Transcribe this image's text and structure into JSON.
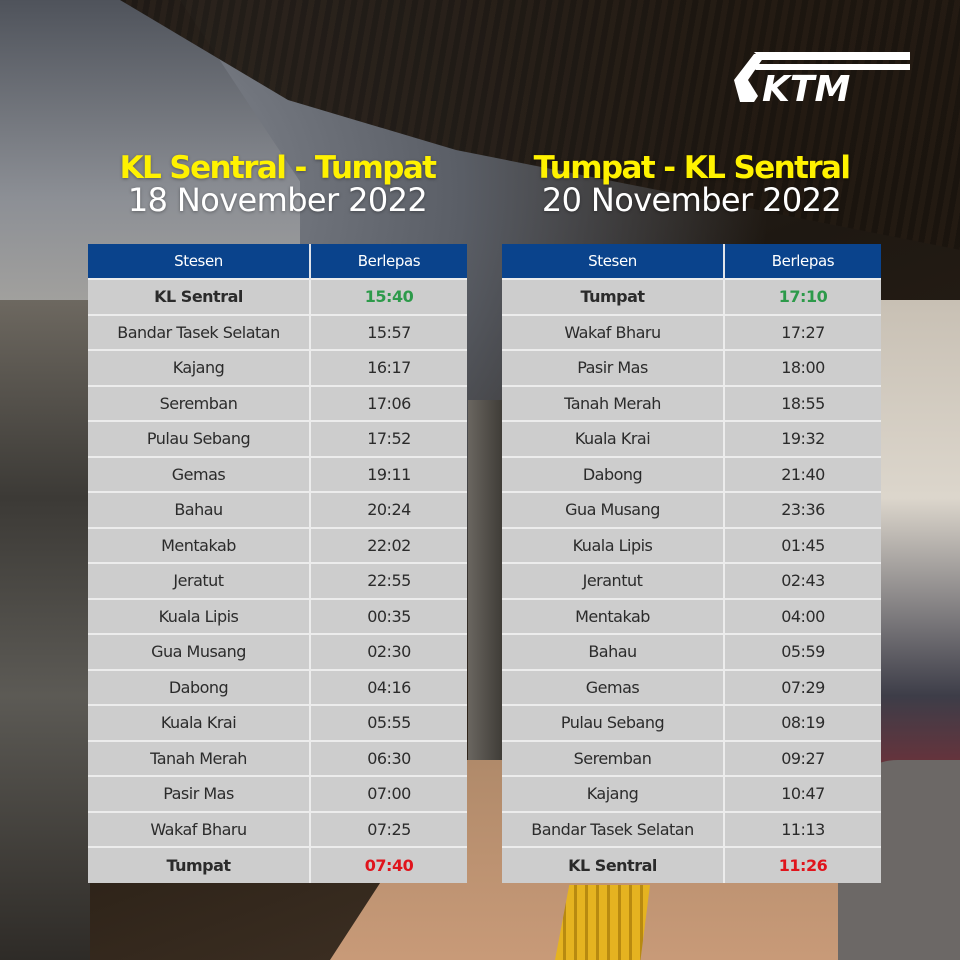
{
  "brand": {
    "logo_text": "KTM",
    "logo_icon": "ktm-logo-icon"
  },
  "colors": {
    "title_yellow": "#fff200",
    "header_blue": "#0a438c",
    "row_grey": "#cdcdcd",
    "departure_green": "#2d9a4a",
    "arrival_red": "#e0141c"
  },
  "schedules": [
    {
      "route": "KL Sentral - Tumpat",
      "date": "18 November 2022",
      "headers": {
        "station": "Stesen",
        "departure": "Berlepas"
      },
      "rows": [
        {
          "station": "KL Sentral",
          "time": "15:40"
        },
        {
          "station": "Bandar Tasek Selatan",
          "time": "15:57"
        },
        {
          "station": "Kajang",
          "time": "16:17"
        },
        {
          "station": "Seremban",
          "time": "17:06"
        },
        {
          "station": "Pulau Sebang",
          "time": "17:52"
        },
        {
          "station": "Gemas",
          "time": "19:11"
        },
        {
          "station": "Bahau",
          "time": "20:24"
        },
        {
          "station": "Mentakab",
          "time": "22:02"
        },
        {
          "station": "Jeratut",
          "time": "22:55"
        },
        {
          "station": "Kuala Lipis",
          "time": "00:35"
        },
        {
          "station": "Gua Musang",
          "time": "02:30"
        },
        {
          "station": "Dabong",
          "time": "04:16"
        },
        {
          "station": "Kuala Krai",
          "time": "05:55"
        },
        {
          "station": "Tanah Merah",
          "time": "06:30"
        },
        {
          "station": "Pasir Mas",
          "time": "07:00"
        },
        {
          "station": "Wakaf Bharu",
          "time": "07:25"
        },
        {
          "station": "Tumpat",
          "time": "07:40"
        }
      ]
    },
    {
      "route": "Tumpat - KL Sentral",
      "date": "20 November 2022",
      "headers": {
        "station": "Stesen",
        "departure": "Berlepas"
      },
      "rows": [
        {
          "station": "Tumpat",
          "time": "17:10"
        },
        {
          "station": "Wakaf Bharu",
          "time": "17:27"
        },
        {
          "station": "Pasir Mas",
          "time": "18:00"
        },
        {
          "station": "Tanah Merah",
          "time": "18:55"
        },
        {
          "station": "Kuala Krai",
          "time": "19:32"
        },
        {
          "station": "Dabong",
          "time": "21:40"
        },
        {
          "station": "Gua Musang",
          "time": "23:36"
        },
        {
          "station": "Kuala Lipis",
          "time": "01:45"
        },
        {
          "station": "Jerantut",
          "time": "02:43"
        },
        {
          "station": "Mentakab",
          "time": "04:00"
        },
        {
          "station": "Bahau",
          "time": "05:59"
        },
        {
          "station": "Gemas",
          "time": "07:29"
        },
        {
          "station": "Pulau Sebang",
          "time": "08:19"
        },
        {
          "station": "Seremban",
          "time": "09:27"
        },
        {
          "station": "Kajang",
          "time": "10:47"
        },
        {
          "station": "Bandar Tasek Selatan",
          "time": "11:13"
        },
        {
          "station": "KL Sentral",
          "time": "11:26"
        }
      ]
    }
  ]
}
